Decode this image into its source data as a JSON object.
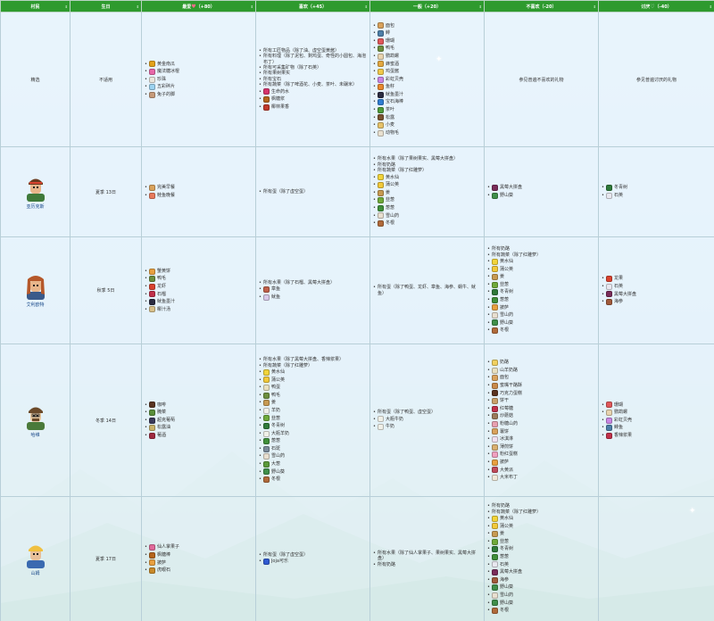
{
  "header": [
    "村民",
    "生日",
    "最爱",
    "喜欢",
    "一般",
    "不喜欢",
    "讨厌"
  ],
  "header_scores": [
    "",
    "",
    "（+80）",
    "（+45）",
    "（+20）",
    "（-20）",
    "（-40）"
  ],
  "colors": {
    "header_bg": "#2e9a2e",
    "cell_bg": "#e8f4fc",
    "border": "#b8cfd8"
  },
  "rows": [
    {
      "name": "精选",
      "birthday": "不适用",
      "love": [
        {
          "t": "黄金南瓜",
          "c": "#e3a21a"
        },
        {
          "t": "魔法糖冰棍",
          "c": "#e867a8"
        },
        {
          "t": "珍珠",
          "c": "#eae6dc"
        },
        {
          "t": "五彩碎片",
          "c": "#9cd3f0"
        },
        {
          "t": "兔子的脚",
          "c": "#c69b7b"
        }
      ],
      "like": [
        {
          "t": "所有工匠物品（除了油、虚空蛋黄酱）",
          "c": ""
        },
        {
          "t": "所有料理（除了泥包、剩鸡蛋、奇怪的小圆包、海泡布丁）",
          "c": ""
        },
        {
          "t": "所有可采集矿物（除了石英）",
          "c": ""
        },
        {
          "t": "所有果树果实",
          "c": ""
        },
        {
          "t": "所有宝石",
          "c": ""
        },
        {
          "t": "所有蔬菜（除了啤酒花、小麦、茶叶、未碾米）",
          "c": ""
        },
        {
          "t": "生命药水",
          "c": "#d6336c"
        },
        {
          "t": "枫糖浆",
          "c": "#b5651d"
        },
        {
          "t": "椰林果香",
          "c": "#c0392b"
        }
      ],
      "neutral": [
        {
          "t": "面包",
          "c": "#d9a25c"
        },
        {
          "t": "鲱",
          "c": "#4d7fa8"
        },
        {
          "t": "珊瑚",
          "c": "#e0585a"
        },
        {
          "t": "鸭毛",
          "c": "#6c8f3f"
        },
        {
          "t": "鹦鹉螺",
          "c": "#e8d4b0"
        },
        {
          "t": "蜂蜜酒",
          "c": "#e3a840"
        },
        {
          "t": "鸡蛋酱",
          "c": "#f0c84a"
        },
        {
          "t": "彩虹贝壳",
          "c": "#c986e3"
        },
        {
          "t": "鱼籽",
          "c": "#e8892f"
        },
        {
          "t": "鱿鱼墨汁",
          "c": "#2b2b40"
        },
        {
          "t": "宝石海棒",
          "c": "#2f7dd1"
        },
        {
          "t": "茶叶",
          "c": "#4f9a3a"
        },
        {
          "t": "松露",
          "c": "#7a5230"
        },
        {
          "t": "小麦",
          "c": "#e6c26a"
        },
        {
          "t": "动物毛",
          "c": "#e8e0d0"
        }
      ],
      "dislike": [
        {
          "t": "参见普遍不喜欢的礼物",
          "c": ""
        }
      ],
      "hate": [
        {
          "t": "参见普遍讨厌的礼物",
          "c": ""
        }
      ]
    },
    {
      "name": "亚历克斯",
      "birthday": "夏季 13日",
      "love": [
        {
          "t": "完美早餐",
          "c": "#d9a25c"
        },
        {
          "t": "鲑鱼晚餐",
          "c": "#e87a5c"
        }
      ],
      "like": [
        {
          "t": "所有蛋（除了虚空蛋）",
          "c": ""
        }
      ],
      "neutral": [
        {
          "t": "所有水果（除了果树果实、黑莓大拼盘）",
          "c": ""
        },
        {
          "t": "所有奶酪",
          "c": ""
        },
        {
          "t": "所有蔬菜（除了红雕萝）",
          "c": ""
        },
        {
          "t": "黄水仙",
          "c": "#f2d43a"
        },
        {
          "t": "蒲公英",
          "c": "#f2c93a"
        },
        {
          "t": "姜",
          "c": "#c79a52"
        },
        {
          "t": "韭葱",
          "c": "#6faa3a"
        },
        {
          "t": "葱葱",
          "c": "#3f8f3a"
        },
        {
          "t": "雪山药",
          "c": "#e8dfd0"
        },
        {
          "t": "冬根",
          "c": "#b06a3a"
        }
      ],
      "dislike": [
        {
          "t": "黑莓大拼盘",
          "c": "#7a2d5a"
        },
        {
          "t": "野山葵",
          "c": "#3f8f4a"
        }
      ],
      "hate": [
        {
          "t": "冬青树",
          "c": "#2f7a3a"
        },
        {
          "t": "石英",
          "c": "#e8e8f0"
        }
      ]
    },
    {
      "name": "艾利欧特",
      "birthday": "秋季 5日",
      "love": [
        {
          "t": "蟹黄饼",
          "c": "#e8a040"
        },
        {
          "t": "鸭毛",
          "c": "#6c8f3f"
        },
        {
          "t": "龙虾",
          "c": "#d9432f"
        },
        {
          "t": "石榴",
          "c": "#c0304a"
        },
        {
          "t": "鱿鱼墨汁",
          "c": "#2b2b40"
        },
        {
          "t": "椰汁汤",
          "c": "#d9c08a"
        }
      ],
      "like": [
        {
          "t": "所有水果（除了石榴、黑莓大拼盘）",
          "c": ""
        },
        {
          "t": "章鱼",
          "c": "#c0604a"
        },
        {
          "t": "鱿鱼",
          "c": "#d7c8e8"
        }
      ],
      "neutral": [
        {
          "t": "所有蛋（除了鸭蛋、龙虾、章鱼、海参、蜗牛、鱿鱼）",
          "c": ""
        }
      ],
      "dislike": [
        {
          "t": "所有奶酪",
          "c": ""
        },
        {
          "t": "所有蔬菜（除了红雕萝）",
          "c": ""
        },
        {
          "t": "黄水仙",
          "c": "#f2d43a"
        },
        {
          "t": "蒲公英",
          "c": "#f2c93a"
        },
        {
          "t": "姜",
          "c": "#c79a52"
        },
        {
          "t": "韭葱",
          "c": "#6faa3a"
        },
        {
          "t": "冬青树",
          "c": "#2f7a3a"
        },
        {
          "t": "葱葱",
          "c": "#3f8f3a"
        },
        {
          "t": "披萨",
          "c": "#e8a040"
        },
        {
          "t": "雪山药",
          "c": "#e8dfd0"
        },
        {
          "t": "野山葵",
          "c": "#3f8f4a"
        },
        {
          "t": "冬根",
          "c": "#b06a3a"
        }
      ],
      "hate": [
        {
          "t": "龙果",
          "c": "#d9432f"
        },
        {
          "t": "石英",
          "c": "#e8e8f0"
        },
        {
          "t": "黑莓大拼盘",
          "c": "#7a2d5a"
        },
        {
          "t": "海参",
          "c": "#a05a3a"
        }
      ]
    },
    {
      "name": "哈维",
      "birthday": "冬季 14日",
      "love": [
        {
          "t": "咖啡",
          "c": "#5a3420"
        },
        {
          "t": "腌菜",
          "c": "#5a8f3a"
        },
        {
          "t": "超克葡萄",
          "c": "#3a3a5a"
        },
        {
          "t": "松露油",
          "c": "#c9b36a"
        },
        {
          "t": "葡酒",
          "c": "#a02a40"
        }
      ],
      "like": [
        {
          "t": "所有水果（除了黑莓大拼盘、香辣浆果）",
          "c": ""
        },
        {
          "t": "所有蔬菜（除了红雕萝）",
          "c": ""
        },
        {
          "t": "黄水仙",
          "c": "#f2d43a"
        },
        {
          "t": "蒲公英",
          "c": "#f2c93a"
        },
        {
          "t": "鸭蛋",
          "c": "#e8e0c0"
        },
        {
          "t": "鸭毛",
          "c": "#6c8f3f"
        },
        {
          "t": "姜",
          "c": "#c79a52"
        },
        {
          "t": "羊奶",
          "c": "#f0f0e8"
        },
        {
          "t": "韭葱",
          "c": "#6faa3a"
        },
        {
          "t": "冬青树",
          "c": "#2f7a3a"
        },
        {
          "t": "大瓶羊奶",
          "c": "#f0f0e8"
        },
        {
          "t": "葱葱",
          "c": "#3f8f3a"
        },
        {
          "t": "石斑",
          "c": "#7a8a9a"
        },
        {
          "t": "雪山药",
          "c": "#e8dfd0"
        },
        {
          "t": "大葱",
          "c": "#5a9a3a"
        },
        {
          "t": "野山葵",
          "c": "#3f8f4a"
        },
        {
          "t": "冬根",
          "c": "#b06a3a"
        }
      ],
      "neutral": [
        {
          "t": "所有蛋（除了鸭蛋、虚空蛋）",
          "c": ""
        },
        {
          "t": "大瓶牛奶",
          "c": "#f0f0e8"
        },
        {
          "t": "牛奶",
          "c": "#f0f0e8"
        }
      ],
      "dislike": [
        {
          "t": "奶酪",
          "c": "#f0d060"
        },
        {
          "t": "山羊奶酪",
          "c": "#e8e0c0"
        },
        {
          "t": "面包",
          "c": "#d9a25c"
        },
        {
          "t": "蜜嘴干酪酥",
          "c": "#c98a4a"
        },
        {
          "t": "巧克力蛋糕",
          "c": "#5a3420"
        },
        {
          "t": "饼干",
          "c": "#c9a06a"
        },
        {
          "t": "红莓糖",
          "c": "#c0304a"
        },
        {
          "t": "炒蘑菇",
          "c": "#9a7a5a"
        },
        {
          "t": "粉糖山药",
          "c": "#e8a0b0"
        },
        {
          "t": "薯饼",
          "c": "#d9a25c"
        },
        {
          "t": "冰淇淋",
          "c": "#f0e0f0"
        },
        {
          "t": "薄煎饼",
          "c": "#d9b070"
        },
        {
          "t": "粉红蛋糕",
          "c": "#f0a0c0"
        },
        {
          "t": "披萨",
          "c": "#e8a040"
        },
        {
          "t": "大黄派",
          "c": "#c04a5a"
        },
        {
          "t": "大米布丁",
          "c": "#f0e8d8"
        }
      ],
      "hate": [
        {
          "t": "珊瑚",
          "c": "#e0585a"
        },
        {
          "t": "鹦鹉螺",
          "c": "#e8d4b0"
        },
        {
          "t": "彩虹贝壳",
          "c": "#c986e3"
        },
        {
          "t": "鲱鱼",
          "c": "#4d7fa8"
        },
        {
          "t": "香辣浆果",
          "c": "#c0304a"
        }
      ]
    },
    {
      "name": "山姆",
      "birthday": "夏季 17日",
      "love": [
        {
          "t": "仙人掌果子",
          "c": "#e06a9a"
        },
        {
          "t": "枫糖棒",
          "c": "#b5651d"
        },
        {
          "t": "披萨",
          "c": "#e8a040"
        },
        {
          "t": "虎眼石",
          "c": "#c98a2a"
        }
      ],
      "like": [
        {
          "t": "所有蛋（除了虚空蛋）",
          "c": ""
        },
        {
          "t": "Joja可乐",
          "c": "#2f5ad1"
        }
      ],
      "neutral": [
        {
          "t": "所有水果（除了仙人掌果子、果树果实、黑莓大拼盘）",
          "c": ""
        },
        {
          "t": "所有奶酪",
          "c": ""
        }
      ],
      "dislike": [
        {
          "t": "所有奶酪",
          "c": ""
        },
        {
          "t": "所有蔬菜（除了红雕萝）",
          "c": ""
        },
        {
          "t": "黄水仙",
          "c": "#f2d43a"
        },
        {
          "t": "蒲公英",
          "c": "#f2c93a"
        },
        {
          "t": "姜",
          "c": "#c79a52"
        },
        {
          "t": "韭葱",
          "c": "#6faa3a"
        },
        {
          "t": "冬青树",
          "c": "#2f7a3a"
        },
        {
          "t": "葱葱",
          "c": "#3f8f3a"
        },
        {
          "t": "石英",
          "c": "#e8e8f0"
        },
        {
          "t": "黑莓大拼盘",
          "c": "#7a2d5a"
        },
        {
          "t": "海参",
          "c": "#a05a3a"
        },
        {
          "t": "野山葵",
          "c": "#3f8f4a"
        },
        {
          "t": "雪山药",
          "c": "#e8dfd0"
        },
        {
          "t": "野山葵",
          "c": "#3f8f4a"
        },
        {
          "t": "冬根",
          "c": "#b06a3a"
        }
      ],
      "hate": []
    }
  ]
}
